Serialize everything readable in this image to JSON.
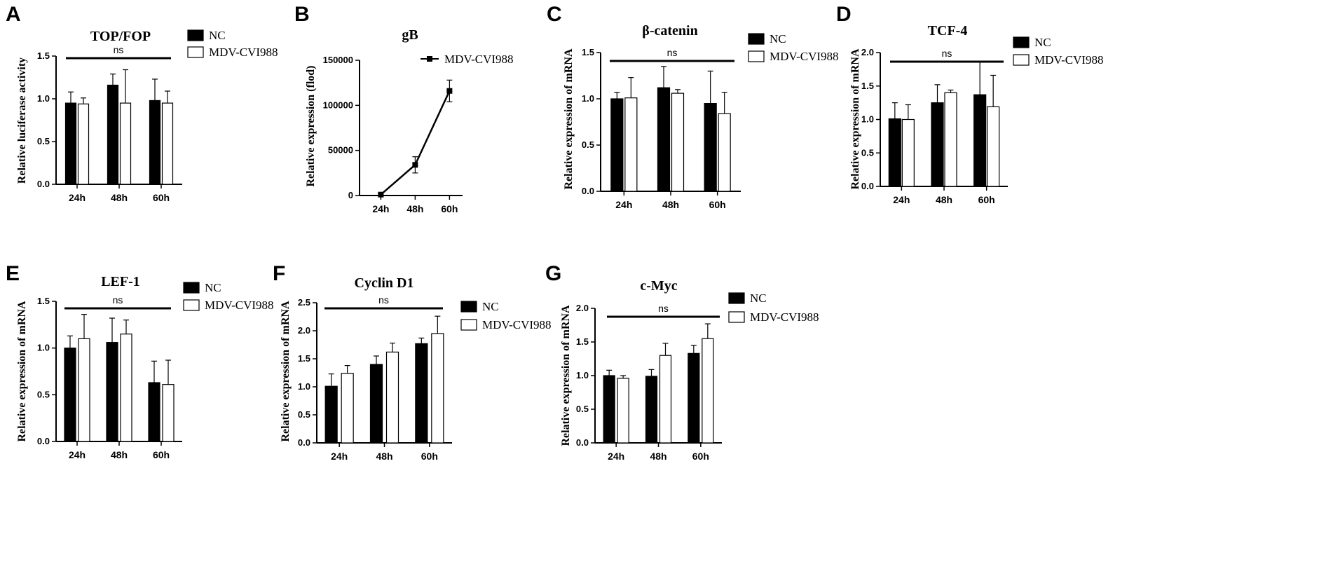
{
  "chart_data": [
    {
      "panel": "A",
      "type": "bar",
      "title": "TOP/FOP",
      "ylabel": "Relative luciferase activity",
      "categories": [
        "24h",
        "48h",
        "60h"
      ],
      "ylim": [
        0,
        1.5
      ],
      "yticks": [
        "0.0",
        "0.5",
        "1.0",
        "1.5"
      ],
      "series": [
        {
          "name": "NC",
          "color": "#000000",
          "values": [
            0.95,
            1.16,
            0.98
          ],
          "errors": [
            0.13,
            0.13,
            0.25
          ]
        },
        {
          "name": "MDV-CVI988",
          "color": "#ffffff",
          "values": [
            0.94,
            0.95,
            0.95
          ],
          "errors": [
            0.07,
            0.39,
            0.14
          ]
        }
      ],
      "significance": "ns"
    },
    {
      "panel": "B",
      "type": "line",
      "title": "gB",
      "ylabel": "Relative expression (flod)",
      "categories": [
        "24h",
        "48h",
        "60h"
      ],
      "ylim": [
        0,
        150000
      ],
      "yticks": [
        "0",
        "50000",
        "100000",
        "150000"
      ],
      "series": [
        {
          "name": "MDV-CVI988",
          "color": "#000000",
          "values": [
            1000,
            34000,
            116000
          ],
          "errors": [
            0,
            9000,
            12000
          ]
        }
      ]
    },
    {
      "panel": "C",
      "type": "bar",
      "title": "β-catenin",
      "ylabel": "Relative expression of mRNA",
      "categories": [
        "24h",
        "48h",
        "60h"
      ],
      "ylim": [
        0,
        1.5
      ],
      "yticks": [
        "0.0",
        "0.5",
        "1.0",
        "1.5"
      ],
      "series": [
        {
          "name": "NC",
          "color": "#000000",
          "values": [
            1.0,
            1.12,
            0.95
          ],
          "errors": [
            0.07,
            0.23,
            0.35
          ]
        },
        {
          "name": "MDV-CVI988",
          "color": "#ffffff",
          "values": [
            1.01,
            1.06,
            0.84
          ],
          "errors": [
            0.22,
            0.04,
            0.23
          ]
        }
      ],
      "significance": "ns"
    },
    {
      "panel": "D",
      "type": "bar",
      "title": "TCF-4",
      "ylabel": "Relative expression of mRNA",
      "categories": [
        "24h",
        "48h",
        "60h"
      ],
      "ylim": [
        0,
        2.0
      ],
      "yticks": [
        "0.0",
        "0.5",
        "1.0",
        "1.5",
        "2.0"
      ],
      "series": [
        {
          "name": "NC",
          "color": "#000000",
          "values": [
            1.01,
            1.25,
            1.37
          ],
          "errors": [
            0.24,
            0.27,
            0.49
          ]
        },
        {
          "name": "MDV-CVI988",
          "color": "#ffffff",
          "values": [
            1.0,
            1.4,
            1.19
          ],
          "errors": [
            0.22,
            0.04,
            0.47
          ]
        }
      ],
      "significance": "ns"
    },
    {
      "panel": "E",
      "type": "bar",
      "title": "LEF-1",
      "ylabel": "Relative expression of mRNA",
      "categories": [
        "24h",
        "48h",
        "60h"
      ],
      "ylim": [
        0,
        1.5
      ],
      "yticks": [
        "0.0",
        "0.5",
        "1.0",
        "1.5"
      ],
      "series": [
        {
          "name": "NC",
          "color": "#000000",
          "values": [
            1.0,
            1.06,
            0.63
          ],
          "errors": [
            0.13,
            0.26,
            0.23
          ]
        },
        {
          "name": "MDV-CVI988",
          "color": "#ffffff",
          "values": [
            1.1,
            1.15,
            0.61
          ],
          "errors": [
            0.26,
            0.15,
            0.26
          ]
        }
      ],
      "significance": "ns"
    },
    {
      "panel": "F",
      "type": "bar",
      "title": "Cyclin D1",
      "ylabel": "Relative expression of mRNA",
      "categories": [
        "24h",
        "48h",
        "60h"
      ],
      "ylim": [
        0,
        2.5
      ],
      "yticks": [
        "0.0",
        "0.5",
        "1.0",
        "1.5",
        "2.0",
        "2.5"
      ],
      "series": [
        {
          "name": "NC",
          "color": "#000000",
          "values": [
            1.01,
            1.4,
            1.77
          ],
          "errors": [
            0.22,
            0.15,
            0.1
          ]
        },
        {
          "name": "MDV-CVI988",
          "color": "#ffffff",
          "values": [
            1.24,
            1.62,
            1.95
          ],
          "errors": [
            0.14,
            0.16,
            0.31
          ]
        }
      ],
      "significance": "ns"
    },
    {
      "panel": "G",
      "type": "bar",
      "title": "c-Myc",
      "ylabel": "Relative expression of mRNA",
      "categories": [
        "24h",
        "48h",
        "60h"
      ],
      "ylim": [
        0,
        2.0
      ],
      "yticks": [
        "0.0",
        "0.5",
        "1.0",
        "1.5",
        "2.0"
      ],
      "series": [
        {
          "name": "NC",
          "color": "#000000",
          "values": [
            1.0,
            0.99,
            1.33
          ],
          "errors": [
            0.08,
            0.1,
            0.12
          ]
        },
        {
          "name": "MDV-CVI988",
          "color": "#ffffff",
          "values": [
            0.96,
            1.3,
            1.55
          ],
          "errors": [
            0.04,
            0.18,
            0.22
          ]
        }
      ],
      "significance": "ns"
    }
  ]
}
